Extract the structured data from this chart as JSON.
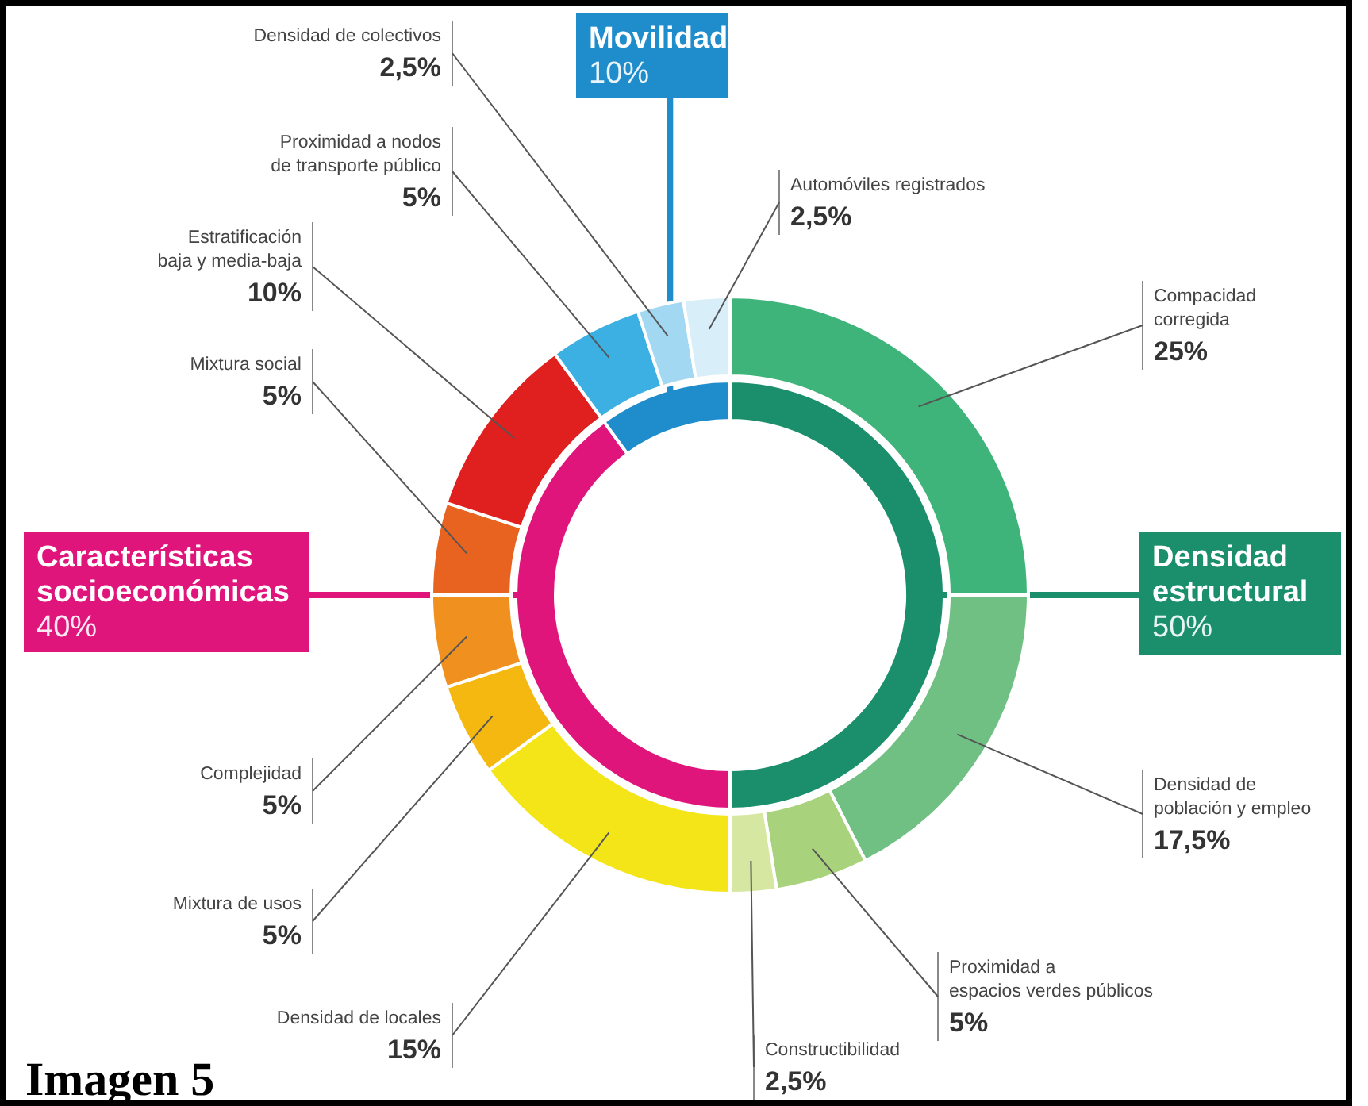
{
  "chart_data": [
    {
      "type": "donut",
      "categories": [
        "Densidad\nestructural",
        "Características\nsocioeconómicas",
        "Movilidad"
      ],
      "values": [
        50,
        40,
        10
      ],
      "value_labels": [
        "50%",
        "40%",
        "10%"
      ],
      "colors": [
        "#1b8f6c",
        "#e0157c",
        "#1f8ccc"
      ]
    },
    {
      "type": "donut",
      "categories": [
        "Compacidad\ncorregida",
        "Densidad de\npoblación y empleo",
        "Proximidad a\nespacios verdes públicos",
        "Constructibilidad",
        "Densidad de locales",
        "Mixtura de usos",
        "Complejidad",
        "Mixtura social",
        "Estratificación\nbaja y media-baja",
        "Proximidad a nodos\nde transporte público",
        "Densidad de colectivos",
        "Automóviles registrados"
      ],
      "values": [
        25,
        17.5,
        5,
        2.5,
        15,
        5,
        5,
        5,
        10,
        5,
        2.5,
        2.5
      ],
      "value_labels": [
        "25%",
        "17,5%",
        "5%",
        "2,5%",
        "15%",
        "5%",
        "5%",
        "5%",
        "10%",
        "5%",
        "2,5%",
        "2,5%"
      ],
      "colors": [
        "#3fb47a",
        "#6fc082",
        "#a9d27c",
        "#d6e7a2",
        "#f4e518",
        "#f5b811",
        "#f0911f",
        "#e8631f",
        "#e01f1f",
        "#3cb0e2",
        "#a2d8f1",
        "#d8eef8"
      ],
      "annotations": [
        "Imagen 5"
      ]
    }
  ]
}
